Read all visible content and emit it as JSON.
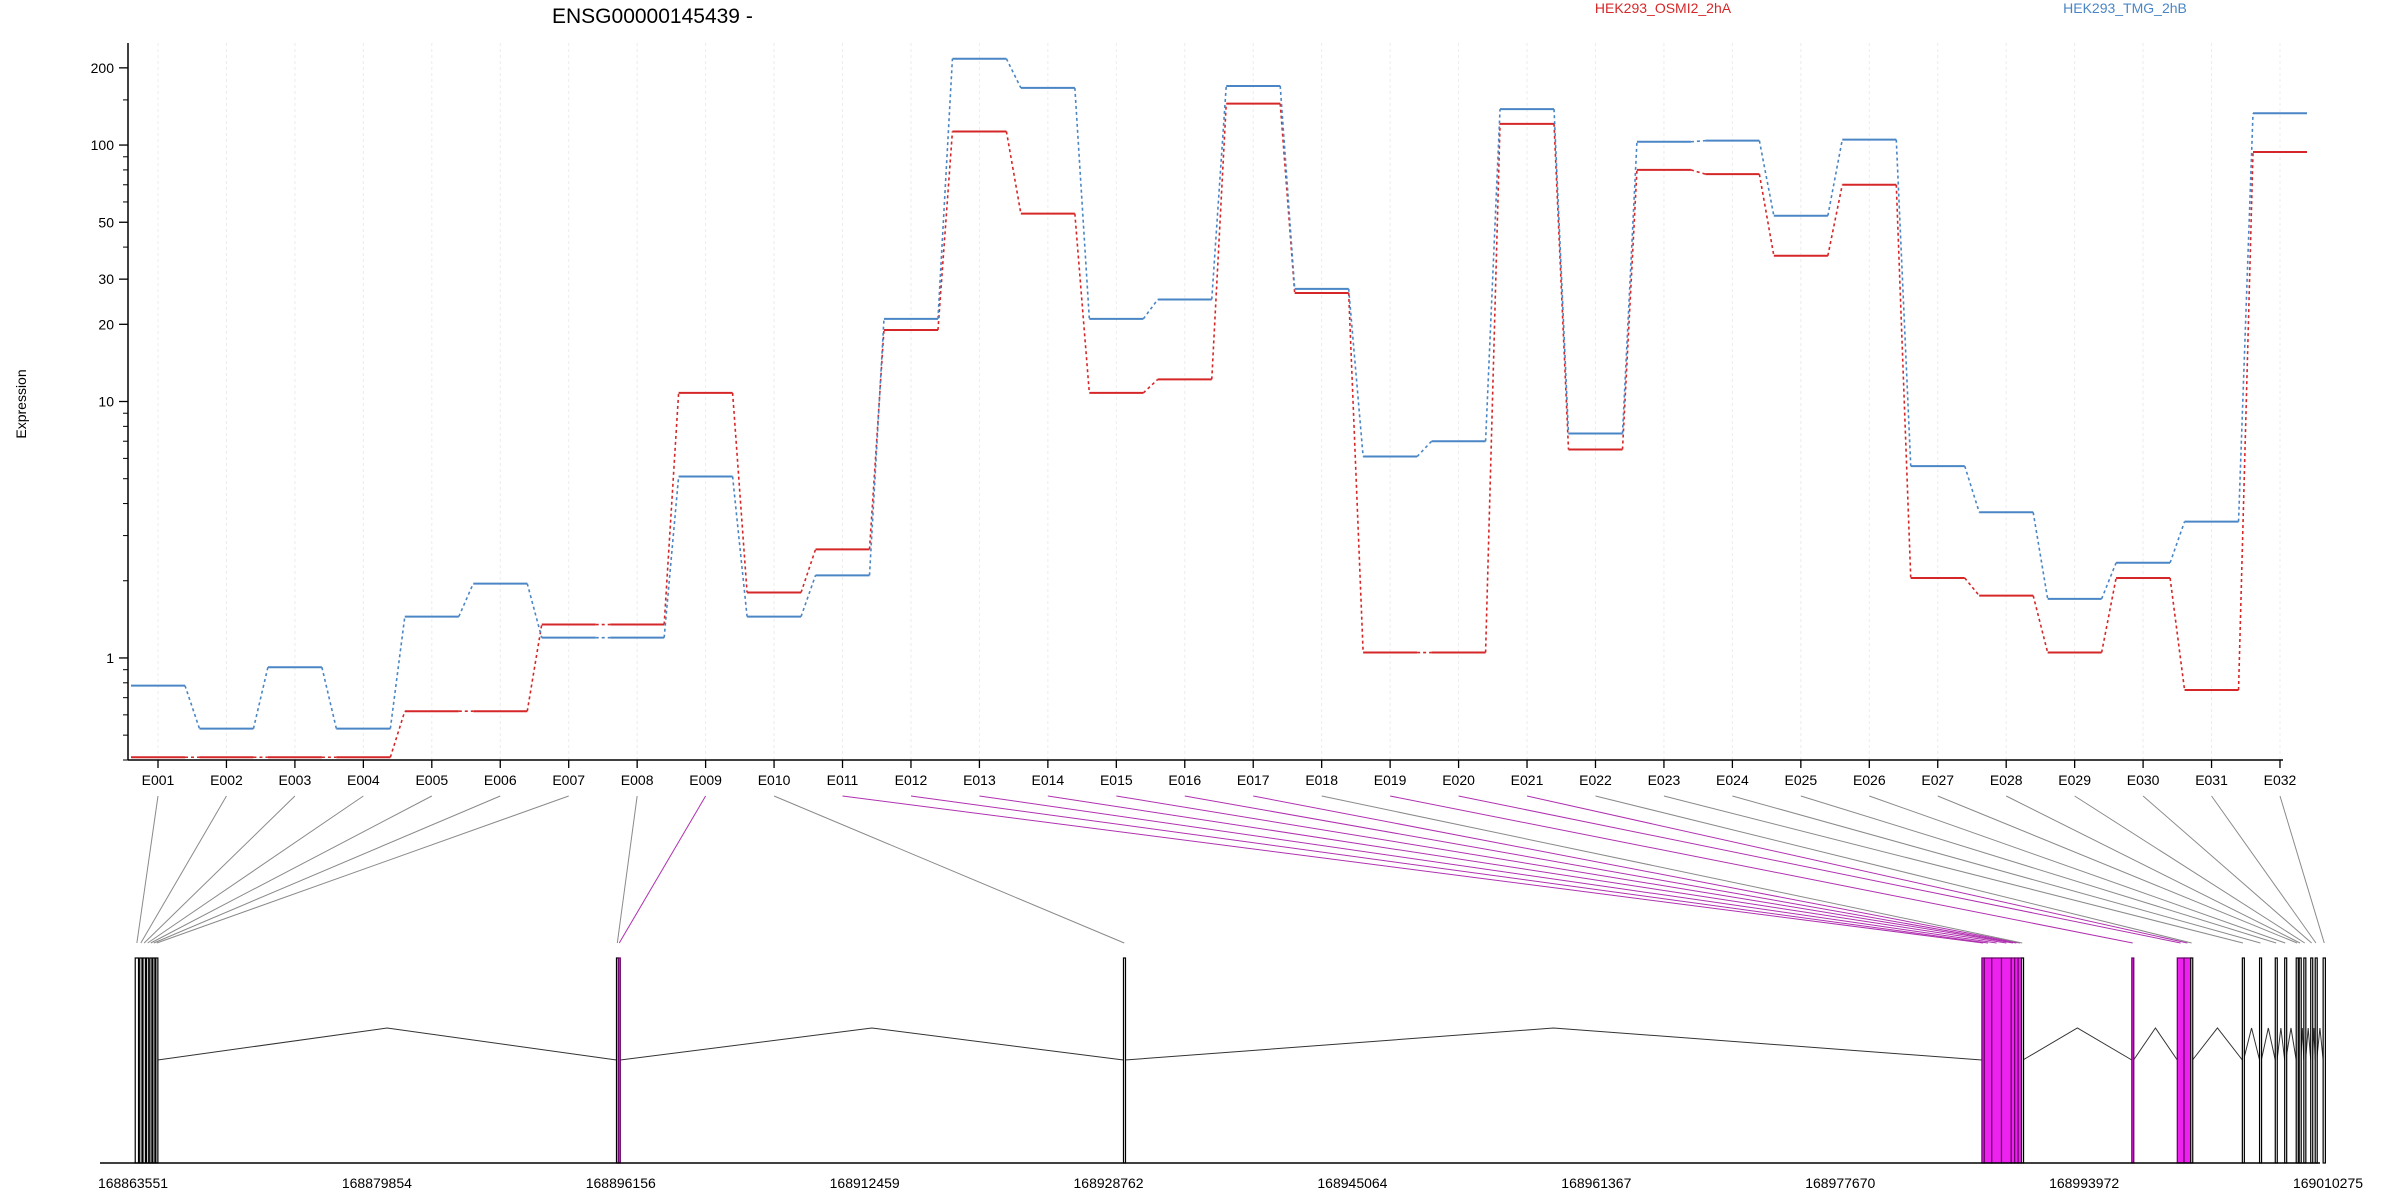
{
  "chart_data": {
    "type": "line",
    "title": "ENSG00000145439 -",
    "ylabel": "Expression",
    "yscale": "log",
    "ylim": [
      0.4,
      250
    ],
    "yticks": [
      "1",
      "10",
      "20",
      "30",
      "50",
      "100",
      "200"
    ],
    "grid_x": true,
    "legend_placement": "top-right",
    "categories": [
      "E001",
      "E002",
      "E003",
      "E004",
      "E005",
      "E006",
      "E007",
      "E008",
      "E009",
      "E010",
      "E011",
      "E012",
      "E013",
      "E014",
      "E015",
      "E016",
      "E017",
      "E018",
      "E019",
      "E020",
      "E021",
      "E022",
      "E023",
      "E024",
      "E025",
      "E026",
      "E027",
      "E028",
      "E029",
      "E030",
      "E031",
      "E032"
    ],
    "series": [
      {
        "name": "HEK293_OSMI2_2hA",
        "color": "#d62728",
        "values": [
          0.41,
          0.41,
          0.41,
          0.41,
          0.62,
          0.62,
          1.35,
          1.35,
          10.8,
          1.8,
          2.65,
          19,
          113,
          54,
          10.8,
          12.2,
          145,
          26.5,
          1.05,
          1.05,
          121,
          6.5,
          80,
          77,
          37,
          70,
          2.05,
          1.75,
          1.05,
          2.05,
          0.75,
          94
        ]
      },
      {
        "name": "HEK293_TMG_2hB",
        "color": "#4a86c5",
        "values": [
          0.78,
          0.53,
          0.92,
          0.53,
          1.45,
          1.95,
          1.2,
          1.2,
          5.1,
          1.45,
          2.1,
          21,
          217,
          167,
          21,
          25,
          170,
          27.5,
          6.1,
          7.0,
          138,
          7.5,
          103,
          104,
          53,
          105,
          5.6,
          3.7,
          1.7,
          2.35,
          3.4,
          133
        ]
      }
    ],
    "gene_model": {
      "coordinates": [
        "168863551",
        "168879854",
        "168896156",
        "168912459",
        "168928762",
        "168945064",
        "168961367",
        "168977670",
        "168993972",
        "169010275"
      ],
      "coord_range": [
        168863551,
        169010275
      ],
      "exons": [
        {
          "id": "E001",
          "start": 168863700,
          "end": 168863920,
          "highlight": false
        },
        {
          "id": "E002",
          "start": 168864000,
          "end": 168864150,
          "highlight": false
        },
        {
          "id": "E003",
          "start": 168864220,
          "end": 168864380,
          "highlight": false
        },
        {
          "id": "E004",
          "start": 168864460,
          "end": 168864600,
          "highlight": false
        },
        {
          "id": "E005",
          "start": 168864680,
          "end": 168864800,
          "highlight": false
        },
        {
          "id": "E006",
          "start": 168864880,
          "end": 168865000,
          "highlight": false
        },
        {
          "id": "E007",
          "start": 168865080,
          "end": 168865200,
          "highlight": false
        },
        {
          "id": "E008",
          "start": 168895870,
          "end": 168895980,
          "highlight": false
        },
        {
          "id": "E009",
          "start": 168895990,
          "end": 168896120,
          "highlight": true
        },
        {
          "id": "E010",
          "start": 168929760,
          "end": 168929860,
          "highlight": false
        },
        {
          "id": "E011",
          "start": 168987140,
          "end": 168987300,
          "highlight": true
        },
        {
          "id": "E012",
          "start": 168987300,
          "end": 168987800,
          "highlight": true
        },
        {
          "id": "E013",
          "start": 168987800,
          "end": 168988450,
          "highlight": true
        },
        {
          "id": "E014",
          "start": 168988450,
          "end": 168989100,
          "highlight": true
        },
        {
          "id": "E015",
          "start": 168989100,
          "end": 168989330,
          "highlight": true
        },
        {
          "id": "E016",
          "start": 168989330,
          "end": 168989560,
          "highlight": true
        },
        {
          "id": "E017",
          "start": 168989560,
          "end": 168989790,
          "highlight": true
        },
        {
          "id": "E018",
          "start": 168989790,
          "end": 168989880,
          "highlight": false
        },
        {
          "id": "E019",
          "start": 168997160,
          "end": 168997280,
          "highlight": true
        },
        {
          "id": "E020",
          "start": 169000200,
          "end": 169000650,
          "highlight": true
        },
        {
          "id": "E021",
          "start": 169000650,
          "end": 169001100,
          "highlight": true
        },
        {
          "id": "E022",
          "start": 169001100,
          "end": 169001220,
          "highlight": false
        },
        {
          "id": "E023",
          "start": 169004550,
          "end": 169004630,
          "highlight": false
        },
        {
          "id": "E024",
          "start": 169005700,
          "end": 169005820,
          "highlight": false
        },
        {
          "id": "E025",
          "start": 169006750,
          "end": 169006870,
          "highlight": false
        },
        {
          "id": "E026",
          "start": 169007380,
          "end": 169007450,
          "highlight": false
        },
        {
          "id": "E027",
          "start": 169008150,
          "end": 169008270,
          "highlight": false
        },
        {
          "id": "E028",
          "start": 169008350,
          "end": 169008460,
          "highlight": false
        },
        {
          "id": "E029",
          "start": 169008660,
          "end": 169008780,
          "highlight": false
        },
        {
          "id": "E030",
          "start": 169009120,
          "end": 169009240,
          "highlight": false
        },
        {
          "id": "E031",
          "start": 169009420,
          "end": 169009520,
          "highlight": false
        },
        {
          "id": "E032",
          "start": 169009950,
          "end": 169010100,
          "highlight": false
        }
      ]
    }
  }
}
